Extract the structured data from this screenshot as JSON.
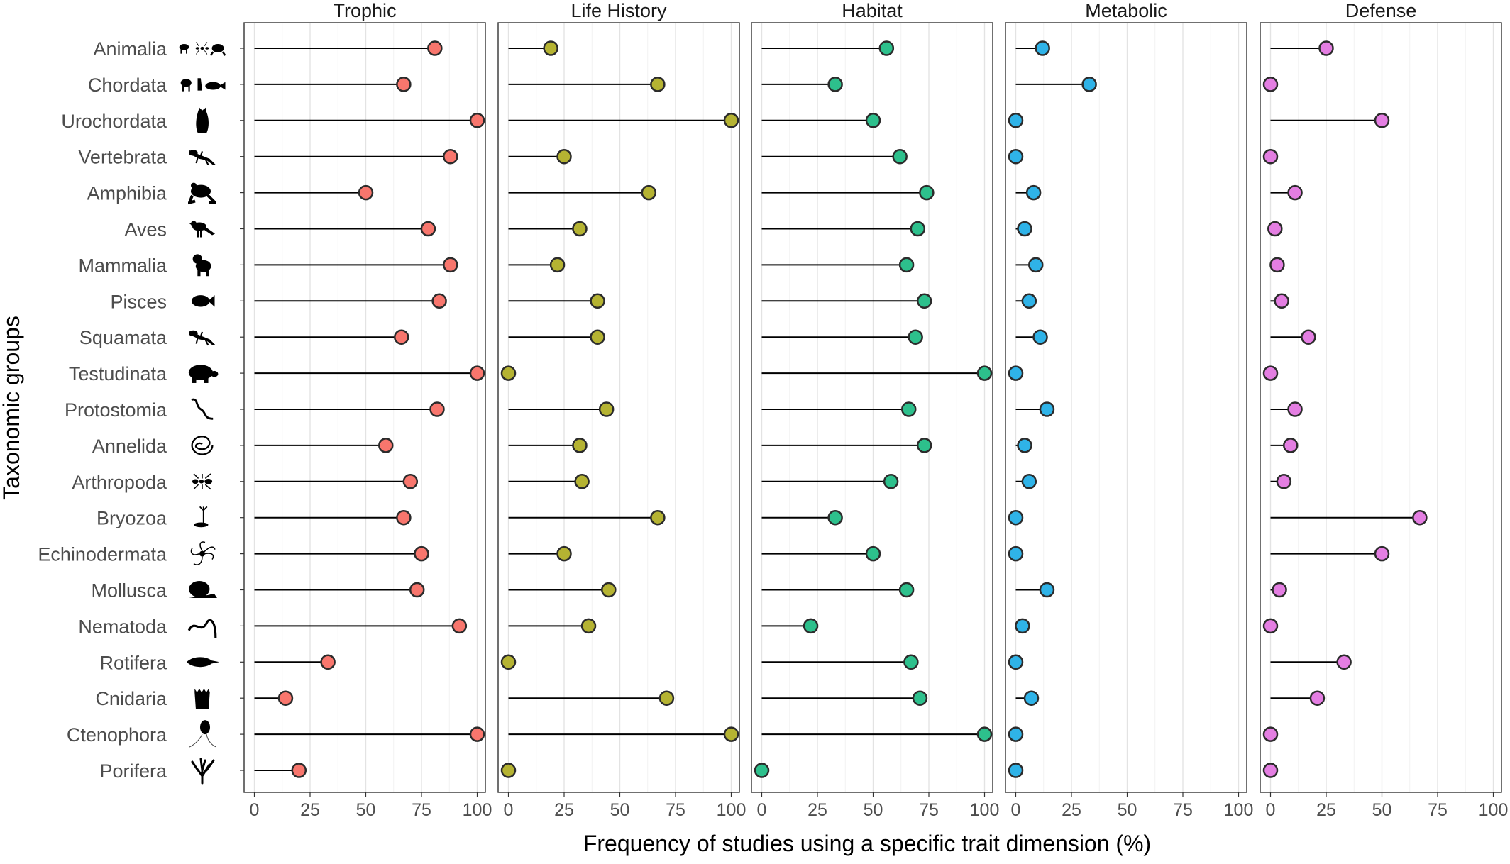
{
  "chart_data": {
    "type": "lollipop",
    "xlabel": "Frequency of studies using a specific trait dimension (%)",
    "ylabel": "Taxonomic groups",
    "xlim": [
      0,
      100
    ],
    "x_ticks": [
      0,
      25,
      50,
      75,
      100
    ],
    "grid": true,
    "categories": [
      "Animalia",
      "Chordata",
      "Urochordata",
      "Vertebrata",
      "Amphibia",
      "Aves",
      "Mammalia",
      "Pisces",
      "Squamata",
      "Testudinata",
      "Protostomia",
      "Annelida",
      "Arthropoda",
      "Bryozoa",
      "Echinodermata",
      "Mollusca",
      "Nematoda",
      "Rotifera",
      "Cnidaria",
      "Ctenophora",
      "Porifera"
    ],
    "category_icons": [
      "animals-silhouette-icon",
      "chordates-silhouette-icon",
      "tunicate-silhouette-icon",
      "lizard-silhouette-icon",
      "frog-silhouette-icon",
      "bird-silhouette-icon",
      "ram-silhouette-icon",
      "fish-silhouette-icon",
      "lizard-silhouette-icon",
      "turtle-silhouette-icon",
      "worm-silhouette-icon",
      "coiled-worm-silhouette-icon",
      "ant-silhouette-icon",
      "bryozoan-silhouette-icon",
      "brittle-star-silhouette-icon",
      "snail-silhouette-icon",
      "nematode-silhouette-icon",
      "rotifer-silhouette-icon",
      "coral-polyp-silhouette-icon",
      "ctenophore-silhouette-icon",
      "sponge-silhouette-icon"
    ],
    "series": [
      {
        "name": "Trophic",
        "color": "#F8766D",
        "values": [
          81,
          67,
          100,
          88,
          50,
          78,
          88,
          83,
          66,
          100,
          82,
          59,
          70,
          67,
          75,
          73,
          92,
          33,
          14,
          100,
          20
        ]
      },
      {
        "name": "Life History",
        "color": "#B5B332",
        "values": [
          19,
          67,
          100,
          25,
          63,
          32,
          22,
          40,
          40,
          0,
          44,
          32,
          33,
          67,
          25,
          45,
          36,
          0,
          71,
          100,
          0
        ]
      },
      {
        "name": "Habitat",
        "color": "#2DC08C",
        "values": [
          56,
          33,
          50,
          62,
          74,
          70,
          65,
          73,
          69,
          100,
          66,
          73,
          58,
          33,
          50,
          65,
          22,
          67,
          71,
          100,
          0
        ]
      },
      {
        "name": "Metabolic",
        "color": "#2FB3E8",
        "values": [
          12,
          33,
          0,
          0,
          8,
          4,
          9,
          6,
          11,
          0,
          14,
          4,
          6,
          0,
          0,
          14,
          3,
          0,
          7,
          0,
          0
        ]
      },
      {
        "name": "Defense",
        "color": "#E47EE2",
        "values": [
          25,
          0,
          50,
          0,
          11,
          2,
          3,
          5,
          17,
          0,
          11,
          9,
          6,
          67,
          50,
          4,
          0,
          33,
          21,
          0,
          0
        ]
      }
    ]
  }
}
